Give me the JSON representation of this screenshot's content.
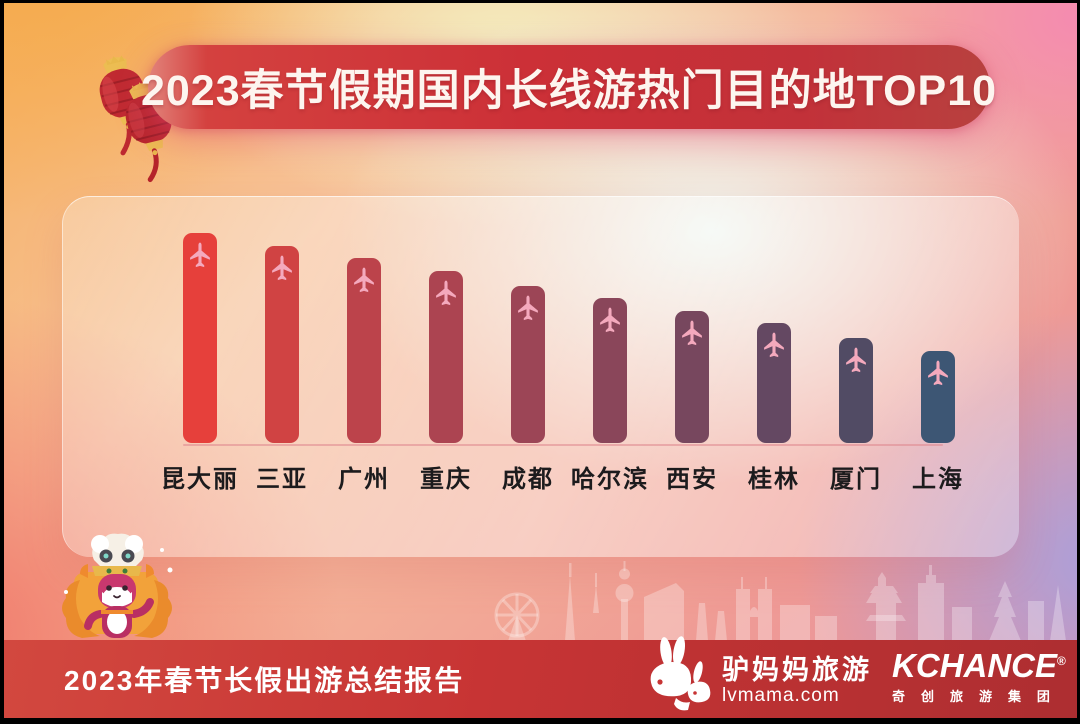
{
  "banner": {
    "title": "2023春节假期国内长线游热门目的地TOP10",
    "accent_color": "#cc3037"
  },
  "chart_data": {
    "type": "bar",
    "title": "2023春节假期国内长线游热门目的地TOP10",
    "categories": [
      "昆大丽",
      "三亚",
      "广州",
      "重庆",
      "成都",
      "哈尔滨",
      "西安",
      "桂林",
      "厦门",
      "上海"
    ],
    "values": [
      100,
      94,
      88,
      82,
      75,
      69,
      63,
      57,
      50,
      44
    ],
    "values_estimated": true,
    "xlabel": "",
    "ylabel": "",
    "ylim": [
      0,
      100
    ],
    "grid": false,
    "legend": false,
    "bar_colors": [
      "#e6403b",
      "#d04343",
      "#bc434b",
      "#ac4451",
      "#9c4556",
      "#8a465a",
      "#77475e",
      "#644862",
      "#514b64",
      "#3d5674"
    ],
    "bar_icon": "airplane-icon",
    "bar_icon_color": "#f4a9bd",
    "label_color": "#1c1b1d"
  },
  "footer": {
    "report_label": "2023年春节长假出游总结报告",
    "lvmama": {
      "brand": "驴妈妈旅游",
      "domain": "lvmama.com"
    },
    "kchance": {
      "brand": "KCHANCE",
      "registered": "®",
      "group": "奇创旅游集团"
    }
  },
  "decorations": {
    "lanterns": "red chinese lanterns",
    "mascot": "lvmama lion-dance mascot",
    "skyline": "city skyline silhouette"
  }
}
